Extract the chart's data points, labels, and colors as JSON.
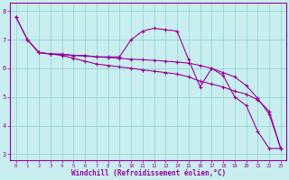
{
  "xlabel": "Windchill (Refroidissement éolien,°C)",
  "background_color": "#c8eef0",
  "grid_color": "#8ecfcf",
  "line_color": "#990099",
  "xlim": [
    -0.5,
    23.5
  ],
  "ylim": [
    2.8,
    8.3
  ],
  "yticks": [
    3,
    4,
    5,
    6,
    7,
    8
  ],
  "xticks": [
    0,
    1,
    2,
    3,
    4,
    5,
    6,
    7,
    8,
    9,
    10,
    11,
    12,
    13,
    14,
    15,
    16,
    17,
    18,
    19,
    20,
    21,
    22,
    23
  ],
  "line1_x": [
    0,
    1,
    2,
    3,
    4,
    5,
    6,
    7,
    8,
    9,
    10,
    11,
    12,
    13,
    14,
    15,
    16,
    17,
    18,
    19,
    20,
    21,
    22,
    23
  ],
  "line1_y": [
    7.8,
    7.0,
    6.55,
    6.5,
    6.5,
    6.45,
    6.45,
    6.4,
    6.4,
    6.4,
    7.0,
    7.3,
    7.4,
    7.35,
    7.3,
    6.3,
    5.35,
    6.0,
    5.75,
    5.0,
    4.7,
    3.8,
    3.2,
    3.2
  ],
  "line2_x": [
    0,
    1,
    2,
    3,
    4,
    5,
    6,
    7,
    8,
    9,
    10,
    11,
    12,
    13,
    14,
    15,
    16,
    17,
    18,
    19,
    20,
    21,
    22,
    23
  ],
  "line2_y": [
    7.8,
    7.0,
    6.55,
    6.5,
    6.48,
    6.45,
    6.43,
    6.4,
    6.38,
    6.35,
    6.32,
    6.3,
    6.28,
    6.25,
    6.22,
    6.18,
    6.1,
    6.0,
    5.85,
    5.7,
    5.4,
    4.95,
    4.4,
    3.2
  ],
  "line3_x": [
    1,
    2,
    3,
    4,
    5,
    6,
    7,
    8,
    9,
    10,
    11,
    12,
    13,
    14,
    15,
    16,
    17,
    18,
    19,
    20,
    21,
    22,
    23
  ],
  "line3_y": [
    7.0,
    6.55,
    6.5,
    6.45,
    6.35,
    6.25,
    6.15,
    6.1,
    6.05,
    6.0,
    5.95,
    5.9,
    5.85,
    5.8,
    5.7,
    5.55,
    5.45,
    5.35,
    5.2,
    5.1,
    4.9,
    4.5,
    3.2
  ]
}
